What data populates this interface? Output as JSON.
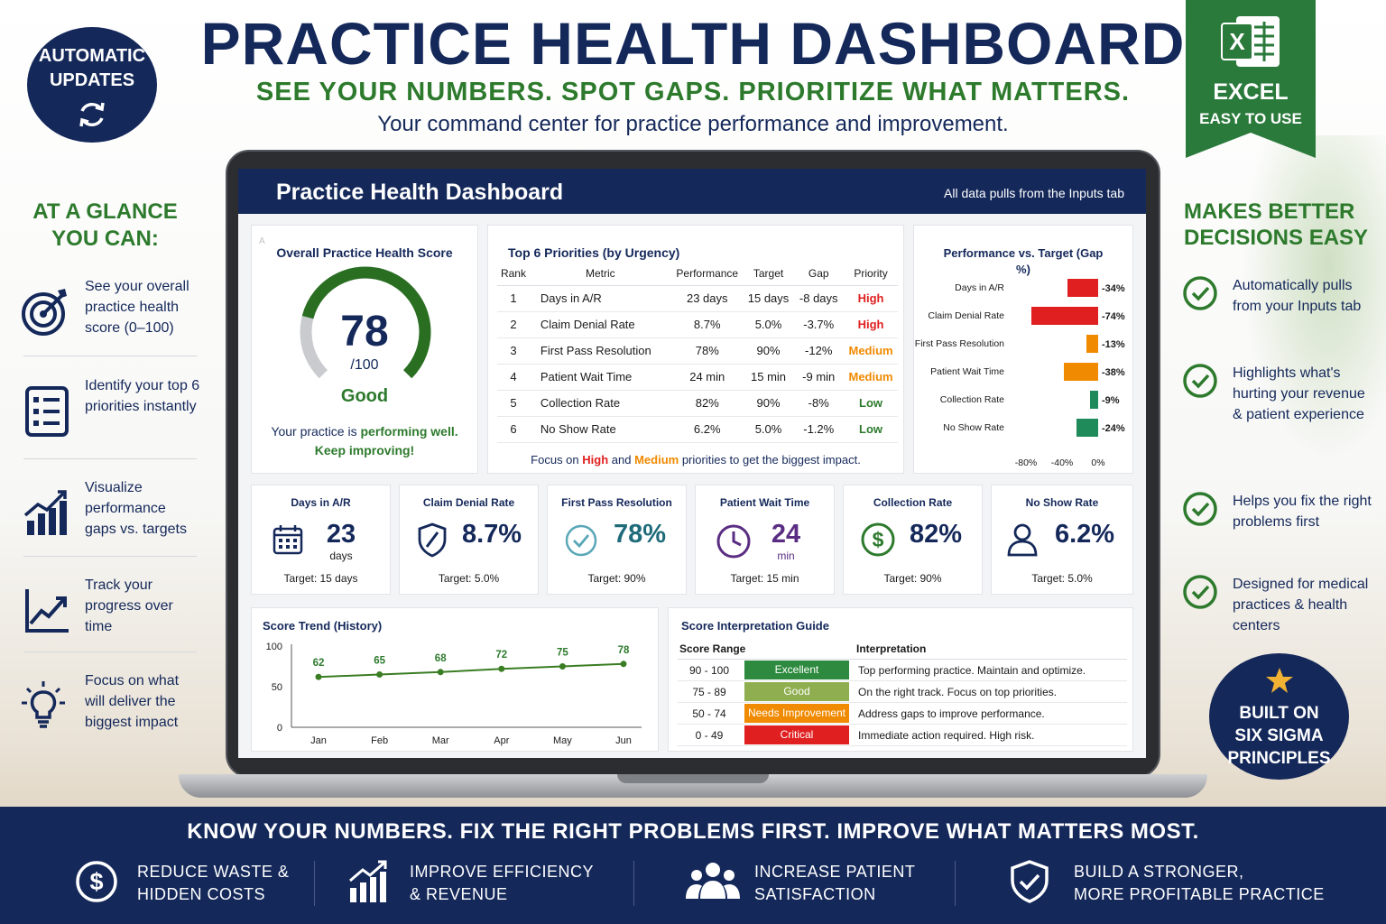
{
  "header": {
    "title": "PRACTICE HEALTH DASHBOARD",
    "tagline": "SEE YOUR NUMBERS. SPOT GAPS. PRIORITIZE WHAT MATTERS.",
    "subtitle": "Your command center for practice performance and improvement."
  },
  "badges": {
    "auto_line1": "AUTOMATIC",
    "auto_line2": "UPDATES",
    "excel_label": "EXCEL",
    "excel_sub": "EASY TO USE",
    "six_line1": "BUILT ON",
    "six_line2": "SIX SIGMA",
    "six_line3": "PRINCIPLES"
  },
  "left_panel": {
    "heading_line1": "AT A GLANCE",
    "heading_line2": "YOU CAN:",
    "items": [
      {
        "icon": "target-icon",
        "text": "See your overall practice health score (0–100)"
      },
      {
        "icon": "checklist-icon",
        "text": "Identify your top 6 priorities instantly"
      },
      {
        "icon": "bar-chart-icon",
        "text": "Visualize performance gaps vs. targets"
      },
      {
        "icon": "trend-line-icon",
        "text": "Track your progress over time"
      },
      {
        "icon": "lightbulb-icon",
        "text": "Focus on what will deliver the biggest impact"
      }
    ]
  },
  "right_panel": {
    "heading_line1": "MAKES BETTER",
    "heading_line2": "DECISIONS EASY",
    "items": [
      {
        "text": "Automatically pulls from your Inputs tab"
      },
      {
        "text": "Highlights what's hurting your revenue & patient experience"
      },
      {
        "text": "Helps you fix the right problems first"
      },
      {
        "text": "Designed for medical practices & health centers"
      }
    ]
  },
  "screen": {
    "title": "Practice Health Dashboard",
    "note": "All data pulls from the Inputs tab",
    "score": {
      "corner": "A",
      "title": "Overall Practice Health Score",
      "value": "78",
      "value_num": 78,
      "max": "/100",
      "rating": "Good",
      "msg_pre": "Your practice is ",
      "msg_bold": "performing well.",
      "msg_line2": "Keep improving!"
    },
    "priorities": {
      "title": "Top 6 Priorities (by Urgency)",
      "columns": [
        "Rank",
        "Metric",
        "Performance",
        "Target",
        "Gap",
        "Priority"
      ],
      "rows": [
        {
          "rank": "1",
          "metric": "Days in A/R",
          "performance": "23 days",
          "target": "15 days",
          "gap": "-8 days",
          "priority": "High"
        },
        {
          "rank": "2",
          "metric": "Claim Denial Rate",
          "performance": "8.7%",
          "target": "5.0%",
          "gap": "-3.7%",
          "priority": "High"
        },
        {
          "rank": "3",
          "metric": "First Pass Resolution",
          "performance": "78%",
          "target": "90%",
          "gap": "-12%",
          "priority": "Medium"
        },
        {
          "rank": "4",
          "metric": "Patient Wait Time",
          "performance": "24 min",
          "target": "15 min",
          "gap": "-9 min",
          "priority": "Medium"
        },
        {
          "rank": "5",
          "metric": "Collection Rate",
          "performance": "82%",
          "target": "90%",
          "gap": "-8%",
          "priority": "Low"
        },
        {
          "rank": "6",
          "metric": "No Show Rate",
          "performance": "6.2%",
          "target": "5.0%",
          "gap": "-1.2%",
          "priority": "Low"
        }
      ],
      "foot_pre": "Focus on ",
      "foot_high": "High",
      "foot_mid": " and ",
      "foot_med": "Medium",
      "foot_post": " priorities to get the biggest impact."
    },
    "kpis": [
      {
        "title": "Days in A/R",
        "value": "23",
        "unit": "days",
        "target": "Target: 15 days",
        "icon": "calendar-icon",
        "color": "#14285a"
      },
      {
        "title": "Claim Denial Rate",
        "value": "8.7%",
        "unit": "",
        "target": "Target: 5.0%",
        "icon": "shield-icon",
        "color": "#14285a"
      },
      {
        "title": "First Pass Resolution",
        "value": "78%",
        "unit": "",
        "target": "Target: 90%",
        "icon": "check-circle-icon",
        "color": "#1f6b7a"
      },
      {
        "title": "Patient Wait Time",
        "value": "24",
        "unit": "min",
        "target": "Target: 15 min",
        "icon": "clock-icon",
        "color": "#5a2d82"
      },
      {
        "title": "Collection Rate",
        "value": "82%",
        "unit": "",
        "target": "Target: 90%",
        "icon": "dollar-icon",
        "color": "#14285a"
      },
      {
        "title": "No Show Rate",
        "value": "6.2%",
        "unit": "",
        "target": "Target: 5.0%",
        "icon": "person-icon",
        "color": "#14285a"
      }
    ],
    "guide": {
      "title": "Score Interpretation Guide",
      "col_range": "Score Range",
      "col_interp": "Interpretation",
      "rows": [
        {
          "range": "90 - 100",
          "label": "Excellent",
          "color": "#2d8a3e",
          "interp": "Top performing practice. Maintain and optimize."
        },
        {
          "range": "75 - 89",
          "label": "Good",
          "color": "#8fae4f",
          "interp": "On the right track. Focus on top priorities."
        },
        {
          "range": "50 - 74",
          "label": "Needs Improvement",
          "color": "#f08a00",
          "interp": "Address gaps to improve performance."
        },
        {
          "range": "0 - 49",
          "label": "Critical",
          "color": "#e02020",
          "interp": "Immediate action required. High risk."
        }
      ]
    }
  },
  "chart_data": [
    {
      "type": "bar",
      "orientation": "horizontal",
      "title": "Performance vs. Target (Gap %)",
      "categories": [
        "Days in A/R",
        "Claim Denial Rate",
        "First Pass Resolution",
        "Patient Wait Time",
        "Collection Rate",
        "No Show Rate"
      ],
      "values": [
        -34,
        -74,
        -13,
        -38,
        -9,
        -24
      ],
      "value_labels": [
        "-34%",
        "-74%",
        "-13%",
        "-38%",
        "-9%",
        "-24%"
      ],
      "colors": [
        "#e02020",
        "#e02020",
        "#f08a00",
        "#f08a00",
        "#1f8a5a",
        "#1f8a5a"
      ],
      "xlim": [
        -80,
        0
      ],
      "xticks": [
        "-80%",
        "-40%",
        "0%"
      ]
    },
    {
      "type": "line",
      "title": "Score Trend (History)",
      "x": [
        "Jan",
        "Feb",
        "Mar",
        "Apr",
        "May",
        "Jun"
      ],
      "values": [
        62,
        65,
        68,
        72,
        75,
        78
      ],
      "ylim": [
        0,
        100
      ],
      "yticks": [
        "0",
        "50",
        "100"
      ],
      "color": "#3a7d23"
    }
  ],
  "bottom": {
    "headline": "KNOW YOUR NUMBERS. FIX THE RIGHT PROBLEMS FIRST. IMPROVE WHAT MATTERS MOST.",
    "items": [
      {
        "icon": "dollar-icon",
        "line1": "REDUCE WASTE &",
        "line2": "HIDDEN COSTS"
      },
      {
        "icon": "growth-chart-icon",
        "line1": "IMPROVE EFFICIENCY",
        "line2": "& REVENUE"
      },
      {
        "icon": "people-icon",
        "line1": "INCREASE PATIENT",
        "line2": "SATISFACTION"
      },
      {
        "icon": "shield-check-icon",
        "line1": "BUILD A STRONGER,",
        "line2": "MORE PROFITABLE PRACTICE"
      }
    ]
  }
}
